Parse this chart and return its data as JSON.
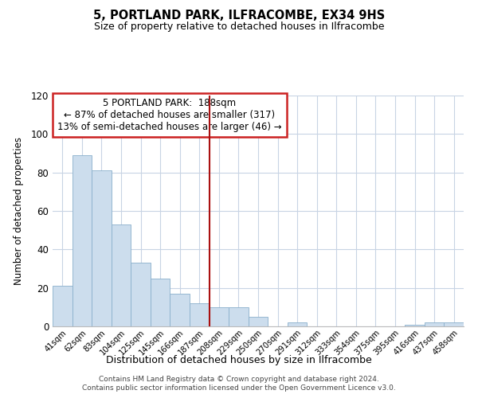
{
  "title": "5, PORTLAND PARK, ILFRACOMBE, EX34 9HS",
  "subtitle": "Size of property relative to detached houses in Ilfracombe",
  "xlabel": "Distribution of detached houses by size in Ilfracombe",
  "ylabel": "Number of detached properties",
  "bar_labels": [
    "41sqm",
    "62sqm",
    "83sqm",
    "104sqm",
    "125sqm",
    "145sqm",
    "166sqm",
    "187sqm",
    "208sqm",
    "229sqm",
    "250sqm",
    "270sqm",
    "291sqm",
    "312sqm",
    "333sqm",
    "354sqm",
    "375sqm",
    "395sqm",
    "416sqm",
    "437sqm",
    "458sqm"
  ],
  "bar_values": [
    21,
    89,
    81,
    53,
    33,
    25,
    17,
    12,
    10,
    10,
    5,
    0,
    2,
    0,
    0,
    0,
    0,
    0,
    1,
    2,
    2
  ],
  "bar_color": "#ccdded",
  "bar_edge_color": "#8ab0cc",
  "reference_line_color": "#aa1111",
  "annotation_title": "5 PORTLAND PARK:  188sqm",
  "annotation_line1": "← 87% of detached houses are smaller (317)",
  "annotation_line2": "13% of semi-detached houses are larger (46) →",
  "annotation_box_color": "#ffffff",
  "annotation_border_color": "#cc2222",
  "ylim": [
    0,
    120
  ],
  "yticks": [
    0,
    20,
    40,
    60,
    80,
    100,
    120
  ],
  "footer_line1": "Contains HM Land Registry data © Crown copyright and database right 2024.",
  "footer_line2": "Contains public sector information licensed under the Open Government Licence v3.0.",
  "background_color": "#ffffff",
  "grid_color": "#c8d4e4"
}
